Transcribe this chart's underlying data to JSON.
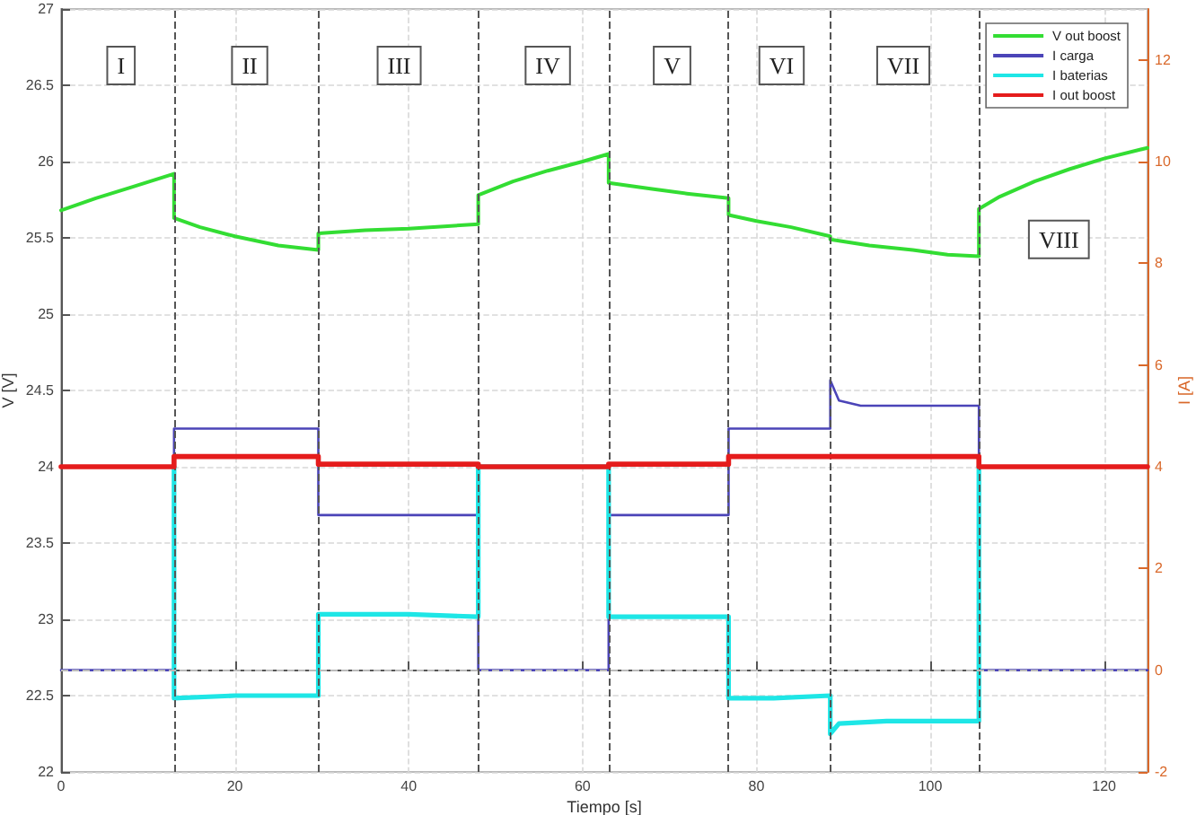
{
  "chart_data": {
    "type": "line",
    "xlabel": "Tiempo [s]",
    "ylabel": "V [V]",
    "y2label": "I [A]",
    "xlim": [
      0,
      125
    ],
    "xticks": [
      0,
      20,
      40,
      60,
      80,
      100,
      120
    ],
    "ylim": [
      22,
      27
    ],
    "yticks": [
      22,
      22.5,
      23,
      23.5,
      24,
      24.5,
      25,
      25.5,
      26,
      26.5,
      27
    ],
    "y2lim": [
      -2,
      13
    ],
    "y2ticks": [
      -2,
      0,
      2,
      4,
      6,
      8,
      10,
      12
    ],
    "grid": true,
    "legend": "top right",
    "marker": "none",
    "series": [
      {
        "name": "V out boost",
        "color": "#33dd33",
        "x": [
          0,
          4,
          8,
          13,
          13,
          16,
          20,
          25,
          29.6,
          29.6,
          35,
          40,
          48,
          48,
          52,
          56,
          60,
          63,
          63,
          68,
          72,
          76.8,
          76.8,
          80,
          84,
          88.5,
          88.5,
          93,
          98,
          102,
          105.6,
          105.6,
          108,
          112,
          116,
          120,
          125
        ],
        "values": [
          25.68,
          25.76,
          25.83,
          25.92,
          25.63,
          25.57,
          25.51,
          25.45,
          25.42,
          25.53,
          25.55,
          25.56,
          25.59,
          25.78,
          25.87,
          25.94,
          26.0,
          26.05,
          25.86,
          25.82,
          25.79,
          25.76,
          25.65,
          25.61,
          25.57,
          25.51,
          25.49,
          25.45,
          25.42,
          25.39,
          25.38,
          25.69,
          25.77,
          25.87,
          25.95,
          26.02,
          26.09
        ]
      },
      {
        "name": "I carga",
        "color": "#4b44b8",
        "axis": "y2",
        "x": [
          0,
          13,
          13,
          29.6,
          29.6,
          48,
          48,
          63,
          63,
          76.8,
          76.8,
          88.5,
          88.5,
          89.5,
          92,
          105.6,
          105.6,
          125
        ],
        "values": [
          0,
          0,
          4.75,
          4.75,
          3.05,
          3.05,
          0,
          0,
          3.05,
          3.05,
          4.75,
          4.75,
          5.7,
          5.3,
          5.2,
          5.2,
          0,
          0
        ]
      },
      {
        "name": "I baterias",
        "color": "#1ee6e6",
        "axis": "y2",
        "x": [
          13,
          13,
          20,
          29.6,
          29.6,
          40,
          48,
          48,
          63,
          63,
          70,
          76.8,
          76.8,
          82,
          88.5,
          88.5,
          89.5,
          95,
          105.6,
          105.6
        ],
        "values": [
          4,
          -0.55,
          -0.5,
          -0.5,
          1.1,
          1.1,
          1.05,
          4,
          4,
          1.05,
          1.05,
          1.05,
          -0.55,
          -0.55,
          -0.5,
          -1.25,
          -1.05,
          -1.0,
          -1.0,
          4
        ]
      },
      {
        "name": "I out boost",
        "color": "#e51c1c",
        "axis": "y2",
        "x": [
          0,
          13,
          13,
          29.6,
          29.6,
          48,
          48,
          63,
          63,
          76.8,
          76.8,
          88.5,
          88.5,
          105.6,
          105.6,
          125
        ],
        "values": [
          4.0,
          4.0,
          4.2,
          4.2,
          4.05,
          4.05,
          4.0,
          4.0,
          4.05,
          4.05,
          4.2,
          4.2,
          4.2,
          4.2,
          4.0,
          4.0
        ]
      }
    ],
    "ref_lines": [
      {
        "axis": "x",
        "value": 13,
        "color": "#555555",
        "line_style": "dashed"
      },
      {
        "axis": "x",
        "value": 29.6,
        "color": "#555555",
        "line_style": "dashed"
      },
      {
        "axis": "x",
        "value": 48,
        "color": "#555555",
        "line_style": "dashed"
      },
      {
        "axis": "x",
        "value": 63,
        "color": "#555555",
        "line_style": "dashed"
      },
      {
        "axis": "x",
        "value": 76.8,
        "color": "#555555",
        "line_style": "dashed"
      },
      {
        "axis": "x",
        "value": 88.5,
        "color": "#555555",
        "line_style": "dashed"
      },
      {
        "axis": "x",
        "value": 105.6,
        "color": "#555555",
        "line_style": "dashed"
      },
      {
        "axis": "y2",
        "value": 0,
        "color": "#bbbbbb",
        "line_style": "dashed"
      }
    ],
    "annotations": [
      {
        "text": "I",
        "x": 6.9,
        "y": 26.63
      },
      {
        "text": "II",
        "x": 21.7,
        "y": 26.63
      },
      {
        "text": "III",
        "x": 38.9,
        "y": 26.63
      },
      {
        "text": "IV",
        "x": 56,
        "y": 26.63
      },
      {
        "text": "V",
        "x": 70.3,
        "y": 26.63
      },
      {
        "text": "VI",
        "x": 82.9,
        "y": 26.63
      },
      {
        "text": "VII",
        "x": 96.9,
        "y": 26.63
      },
      {
        "text": "VIII",
        "x": 114.8,
        "y": 25.49
      }
    ]
  }
}
